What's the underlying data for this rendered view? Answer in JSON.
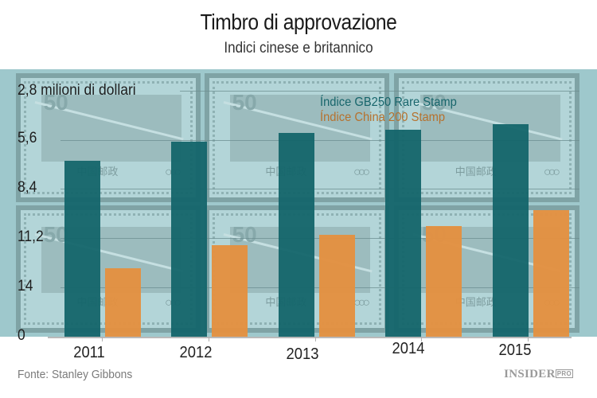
{
  "header": {
    "title": "Timbro di approvazione",
    "subtitle": "Indici cinese e britannico"
  },
  "axis": {
    "unit_label": "2,8 milioni di dollari",
    "y_tick_labels": [
      "5,6",
      "8,4",
      "11,2",
      "14",
      "0"
    ],
    "x_tick_labels": [
      "2011",
      "2012",
      "2013",
      "2014",
      "2015"
    ]
  },
  "legend": {
    "items": [
      {
        "label": "Índice GB250 Rare Stamp",
        "color": "#17656b"
      },
      {
        "label": "Índice China 200 Stamp",
        "color": "#e39141"
      }
    ]
  },
  "footer": {
    "source": "Fonte: Stanley Gibbons",
    "brand": "INSIDER",
    "brand_suffix": "PRO"
  },
  "colors": {
    "teal": "#14656a",
    "orange": "#e39141",
    "panel": "#9ec8cc"
  },
  "stamps": {
    "value": "50",
    "caption": "中国邮政",
    "rings": "○○○"
  },
  "chart_data": {
    "type": "bar",
    "title": "Timbro di approvazione",
    "subtitle": "Indici cinese e britannico",
    "xlabel": "",
    "ylabel": "milioni di dollari",
    "categories": [
      "2011",
      "2012",
      "2013",
      "2014",
      "2015"
    ],
    "series": [
      {
        "name": "Índice GB250 Rare Stamp",
        "values": [
          10.0,
          11.1,
          11.6,
          11.8,
          12.1
        ]
      },
      {
        "name": "Índice China 200 Stamp",
        "values": [
          3.9,
          5.2,
          5.8,
          6.3,
          7.2
        ]
      }
    ],
    "y_tick_labels_as_printed_top_to_bottom": [
      "2,8",
      "5,6",
      "8,4",
      "11,2",
      "14",
      "0"
    ],
    "ylim": [
      0,
      14
    ],
    "grid": true,
    "legend_position": "top-right inside plot",
    "source": "Fonte: Stanley Gibbons"
  }
}
